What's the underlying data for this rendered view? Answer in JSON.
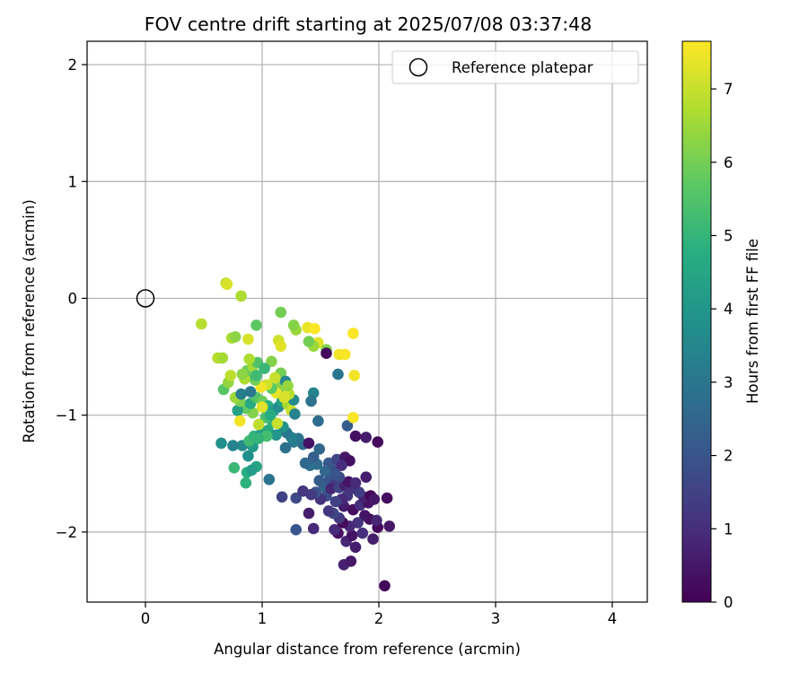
{
  "chart_data": {
    "type": "scatter",
    "title": "FOV centre drift starting at 2025/07/08 03:37:48",
    "xlabel": "Angular distance from reference (arcmin)",
    "ylabel": "Rotation from reference (arcmin)",
    "xlim": [
      -0.5,
      4.3
    ],
    "ylim": [
      -2.6,
      2.2
    ],
    "xticks": [
      0,
      1,
      2,
      3,
      4
    ],
    "yticks": [
      -2,
      -1,
      0,
      1,
      2
    ],
    "xtick_labels": [
      "0",
      "1",
      "2",
      "3",
      "4"
    ],
    "ytick_labels": [
      "−2",
      "−1",
      "0",
      "1",
      "2"
    ],
    "grid": true,
    "legend": {
      "position": "top-right",
      "entries": [
        {
          "label": "Reference platepar",
          "marker": "open-circle"
        }
      ]
    },
    "reference_point": {
      "x": 0,
      "y": 0
    },
    "colorbar": {
      "label": "Hours from first FF file",
      "colormap": "viridis",
      "range": [
        0,
        7.65
      ],
      "ticks": [
        0,
        1,
        2,
        3,
        4,
        5,
        6,
        7
      ],
      "tick_labels": [
        "0",
        "1",
        "2",
        "3",
        "4",
        "5",
        "6",
        "7"
      ]
    },
    "series": [
      {
        "marker": "filled-circle",
        "points": [
          [
            2.05,
            -2.46,
            0.15
          ],
          [
            1.7,
            -2.28,
            0.7
          ],
          [
            1.76,
            -2.25,
            0.5
          ],
          [
            1.72,
            -2.08,
            0.8
          ],
          [
            1.8,
            -2.13,
            0.6
          ],
          [
            1.65,
            -2.01,
            0.3
          ],
          [
            1.62,
            -1.98,
            0.9
          ],
          [
            1.77,
            -2.03,
            0.4
          ],
          [
            1.86,
            -2.01,
            1.0
          ],
          [
            1.95,
            -2.06,
            0.6
          ],
          [
            1.99,
            -1.96,
            0.2
          ],
          [
            2.09,
            -1.95,
            0.5
          ],
          [
            1.92,
            -1.89,
            0.3
          ],
          [
            1.98,
            -1.9,
            0.8
          ],
          [
            1.88,
            -1.86,
            0.4
          ],
          [
            1.82,
            -1.92,
            1.1
          ],
          [
            1.75,
            -1.95,
            0.9
          ],
          [
            1.69,
            -1.92,
            0.2
          ],
          [
            1.66,
            -1.88,
            1.3
          ],
          [
            1.61,
            -1.84,
            1.6
          ],
          [
            1.57,
            -1.82,
            1.2
          ],
          [
            1.7,
            -1.78,
            0.6
          ],
          [
            1.78,
            -1.81,
            0.3
          ],
          [
            1.84,
            -1.77,
            1.0
          ],
          [
            1.91,
            -1.75,
            0.4
          ],
          [
            1.87,
            -1.7,
            0.7
          ],
          [
            1.83,
            -1.66,
            1.4
          ],
          [
            1.93,
            -1.69,
            0.1
          ],
          [
            1.96,
            -1.72,
            0.5
          ],
          [
            2.07,
            -1.71,
            0.3
          ],
          [
            1.73,
            -1.69,
            1.2
          ],
          [
            1.68,
            -1.72,
            0.9
          ],
          [
            1.63,
            -1.74,
            1.5
          ],
          [
            1.55,
            -1.69,
            1.8
          ],
          [
            1.5,
            -1.72,
            1.1
          ],
          [
            1.46,
            -1.66,
            1.9
          ],
          [
            1.42,
            -1.68,
            1.3
          ],
          [
            1.4,
            -1.84,
            0.6
          ],
          [
            1.44,
            -1.97,
            0.9
          ],
          [
            1.29,
            -1.98,
            2.0
          ],
          [
            1.29,
            -1.71,
            1.7
          ],
          [
            1.17,
            -1.7,
            1.5
          ],
          [
            1.35,
            -1.65,
            1.2
          ],
          [
            1.53,
            -1.61,
            2.4
          ],
          [
            1.49,
            -1.56,
            2.2
          ],
          [
            1.58,
            -1.55,
            1.9
          ],
          [
            1.63,
            -1.59,
            1.3
          ],
          [
            1.59,
            -1.63,
            0.8
          ],
          [
            1.66,
            -1.62,
            1.5
          ],
          [
            1.71,
            -1.6,
            0.7
          ],
          [
            1.76,
            -1.63,
            1.1
          ],
          [
            1.74,
            -1.57,
            0.4
          ],
          [
            1.8,
            -1.58,
            0.9
          ],
          [
            1.89,
            -1.53,
            0.6
          ],
          [
            1.66,
            -1.53,
            1.7
          ],
          [
            1.61,
            -1.47,
            1.8
          ],
          [
            1.57,
            -1.41,
            2.1
          ],
          [
            1.64,
            -1.38,
            1.6
          ],
          [
            1.71,
            -1.36,
            0.5
          ],
          [
            1.75,
            -1.39,
            0.3
          ],
          [
            1.68,
            -1.43,
            1.0
          ],
          [
            1.63,
            -1.51,
            2.0
          ],
          [
            1.54,
            -1.48,
            2.5
          ],
          [
            1.47,
            -1.42,
            2.7
          ],
          [
            1.41,
            -1.43,
            2.8
          ],
          [
            1.37,
            -1.41,
            2.6
          ],
          [
            1.44,
            -1.36,
            2.3
          ],
          [
            1.49,
            -1.29,
            2.5
          ],
          [
            1.35,
            -1.25,
            2.7
          ],
          [
            1.4,
            -1.24,
            0.4
          ],
          [
            1.31,
            -1.2,
            2.9
          ],
          [
            1.27,
            -1.23,
            3.1
          ],
          [
            1.2,
            -1.28,
            2.8
          ],
          [
            1.25,
            -1.19,
            3.3
          ],
          [
            1.21,
            -1.15,
            3.0
          ],
          [
            1.8,
            -1.18,
            0.3
          ],
          [
            1.89,
            -1.19,
            0.6
          ],
          [
            1.99,
            -1.23,
            0.2
          ],
          [
            1.06,
            -1.55,
            2.9
          ],
          [
            0.87,
            -1.49,
            4.8
          ],
          [
            0.95,
            -1.44,
            4.5
          ],
          [
            0.91,
            -1.47,
            4.2
          ],
          [
            0.76,
            -1.45,
            5.1
          ],
          [
            0.88,
            -1.35,
            3.8
          ],
          [
            0.92,
            -1.27,
            4.1
          ],
          [
            0.83,
            -1.26,
            3.6
          ],
          [
            0.75,
            -1.26,
            3.4
          ],
          [
            0.65,
            -1.24,
            3.8
          ],
          [
            0.89,
            -1.22,
            5.2
          ],
          [
            0.93,
            -1.18,
            5.0
          ],
          [
            0.99,
            -1.16,
            4.3
          ],
          [
            1.05,
            -1.13,
            4.6
          ],
          [
            1.12,
            -1.17,
            4.0
          ],
          [
            1.18,
            -1.1,
            3.9
          ],
          [
            1.09,
            -1.06,
            4.9
          ],
          [
            1.03,
            -1.02,
            5.4
          ],
          [
            0.97,
            -1.08,
            6.9
          ],
          [
            0.92,
            -0.98,
            6.2
          ],
          [
            0.86,
            -0.94,
            5.8
          ],
          [
            0.79,
            -0.96,
            4.4
          ],
          [
            0.81,
            -0.88,
            6.1
          ],
          [
            0.77,
            -0.85,
            6.5
          ],
          [
            0.9,
            -0.9,
            4.6
          ],
          [
            0.95,
            -0.85,
            5.5
          ],
          [
            1.0,
            -0.88,
            5.9
          ],
          [
            1.05,
            -0.92,
            4.8
          ],
          [
            1.1,
            -0.96,
            4.2
          ],
          [
            1.14,
            -0.93,
            3.7
          ],
          [
            1.17,
            -0.88,
            4.4
          ],
          [
            1.22,
            -0.91,
            6.6
          ],
          [
            1.25,
            -0.96,
            7.0
          ],
          [
            1.28,
            -0.99,
            3.4
          ],
          [
            1.27,
            -0.87,
            3.6
          ],
          [
            1.23,
            -0.82,
            6.8
          ],
          [
            1.19,
            -0.79,
            7.2
          ],
          [
            1.15,
            -0.76,
            6.3
          ],
          [
            1.12,
            -0.81,
            7.4
          ],
          [
            1.08,
            -0.77,
            5.7
          ],
          [
            1.04,
            -0.74,
            7.1
          ],
          [
            0.99,
            -0.76,
            7.5
          ],
          [
            0.94,
            -0.7,
            6.0
          ],
          [
            0.89,
            -0.66,
            5.4
          ],
          [
            0.85,
            -0.69,
            6.7
          ],
          [
            0.82,
            -0.82,
            3.2
          ],
          [
            0.67,
            -0.78,
            5.6
          ],
          [
            0.71,
            -0.72,
            6.4
          ],
          [
            0.73,
            -0.66,
            6.9
          ],
          [
            0.87,
            -0.62,
            5.9
          ],
          [
            0.92,
            -0.58,
            6.6
          ],
          [
            0.96,
            -0.55,
            5.5
          ],
          [
            1.08,
            -0.54,
            6.2
          ],
          [
            1.16,
            -0.64,
            6.0
          ],
          [
            1.2,
            -0.71,
            3.5
          ],
          [
            1.22,
            -0.75,
            6.4
          ],
          [
            1.11,
            -0.68,
            7.0
          ],
          [
            1.02,
            -0.6,
            5.1
          ],
          [
            0.62,
            -0.51,
            6.8
          ],
          [
            0.66,
            -0.51,
            6.6
          ],
          [
            0.89,
            -0.52,
            6.7
          ],
          [
            1.14,
            -0.36,
            7.1
          ],
          [
            1.16,
            -0.41,
            7.3
          ],
          [
            1.29,
            -0.27,
            6.5
          ],
          [
            1.27,
            -0.23,
            6.2
          ],
          [
            1.39,
            -0.25,
            7.4
          ],
          [
            1.45,
            -0.26,
            7.6
          ],
          [
            1.48,
            -0.38,
            7.3
          ],
          [
            1.55,
            -0.44,
            6.1
          ],
          [
            1.44,
            -0.41,
            6.5
          ],
          [
            1.4,
            -0.37,
            6.0
          ],
          [
            1.55,
            -0.47,
            0.2
          ],
          [
            1.66,
            -0.48,
            7.5
          ],
          [
            1.71,
            -0.48,
            7.6
          ],
          [
            1.78,
            -0.3,
            7.6
          ],
          [
            1.79,
            -0.66,
            7.5
          ],
          [
            1.65,
            -0.65,
            3.0
          ],
          [
            1.44,
            -0.81,
            3.4
          ],
          [
            1.42,
            -0.88,
            2.9
          ],
          [
            1.48,
            -1.05,
            2.7
          ],
          [
            1.73,
            -1.09,
            2.2
          ],
          [
            1.78,
            -1.02,
            7.6
          ],
          [
            0.48,
            -0.22,
            6.8
          ],
          [
            0.74,
            -0.34,
            6.7
          ],
          [
            0.77,
            -0.33,
            6.3
          ],
          [
            0.88,
            -0.35,
            7.2
          ],
          [
            0.95,
            -0.23,
            5.7
          ],
          [
            0.69,
            0.13,
            6.9
          ],
          [
            0.7,
            0.12,
            7.2
          ],
          [
            0.82,
            0.02,
            6.7
          ],
          [
            1.16,
            -0.12,
            6.0
          ],
          [
            0.81,
            -1.05,
            7.5
          ],
          [
            1.04,
            -1.18,
            5.3
          ],
          [
            0.97,
            -1.2,
            5.0
          ],
          [
            1.13,
            -1.07,
            7.0
          ],
          [
            1.07,
            -1.0,
            4.7
          ],
          [
            0.86,
            -1.58,
            4.9
          ],
          [
            0.83,
            -0.65,
            6.3
          ],
          [
            0.9,
            -0.8,
            3.1
          ],
          [
            0.95,
            -0.66,
            5.2
          ],
          [
            1.0,
            -0.93,
            7.3
          ],
          [
            1.19,
            -0.85,
            7.2
          ]
        ]
      }
    ]
  }
}
